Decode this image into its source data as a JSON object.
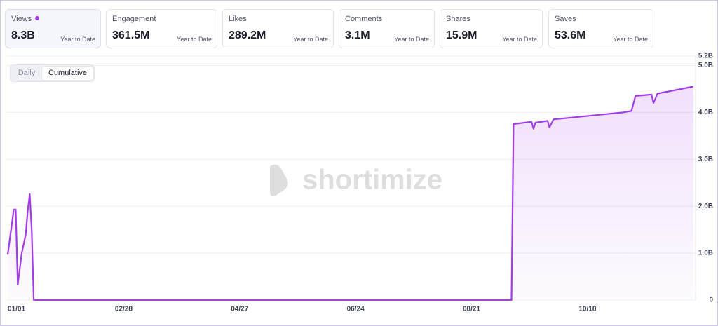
{
  "cards": [
    {
      "label": "Views",
      "value": "8.3B",
      "period": "Year to Date"
    },
    {
      "label": "Engagement",
      "value": "361.5M",
      "period": "Year to Date"
    },
    {
      "label": "Likes",
      "value": "289.2M",
      "period": "Year to Date"
    },
    {
      "label": "Comments",
      "value": "3.1M",
      "period": "Year to Date"
    },
    {
      "label": "Shares",
      "value": "15.9M",
      "period": "Year to Date"
    },
    {
      "label": "Saves",
      "value": "53.6M",
      "period": "Year to Date"
    }
  ],
  "toggle": [
    "Daily",
    "Cumulative"
  ],
  "watermark": "shortimize",
  "chart_data": {
    "type": "area",
    "color": "#a33be8",
    "x": [
      "01/01",
      "01/03",
      "01/04",
      "01/05",
      "01/06",
      "01/08",
      "01/10",
      "01/11",
      "01/12",
      "01/13",
      "01/14",
      "09/10",
      "09/11",
      "09/20",
      "09/21",
      "09/22",
      "09/28",
      "09/29",
      "10/01",
      "11/05",
      "11/09",
      "11/11",
      "11/19",
      "11/20",
      "11/22",
      "12/10"
    ],
    "values": [
      0.97,
      1.6,
      1.93,
      1.93,
      0.33,
      1.0,
      1.4,
      1.9,
      2.26,
      1.5,
      0,
      0,
      3.75,
      3.8,
      3.65,
      3.78,
      3.82,
      3.68,
      3.85,
      4.0,
      4.03,
      4.35,
      4.38,
      4.2,
      4.4,
      4.55
    ],
    "xlim": [
      "01/01",
      "12/10"
    ],
    "xticks": [
      "01/01",
      "02/28",
      "04/27",
      "06/24",
      "08/21",
      "10/18"
    ],
    "ylim": [
      0,
      5.2
    ],
    "yticks": [
      0,
      {
        "value": 1,
        "label": "1.0B"
      },
      {
        "value": 2,
        "label": "2.0B"
      },
      {
        "value": 3,
        "label": "3.0B"
      },
      {
        "value": 4,
        "label": "4.0B"
      },
      {
        "value": 5,
        "label": "5.0B"
      },
      {
        "value": 5.2,
        "label": "5.2B"
      }
    ],
    "grid": true
  }
}
